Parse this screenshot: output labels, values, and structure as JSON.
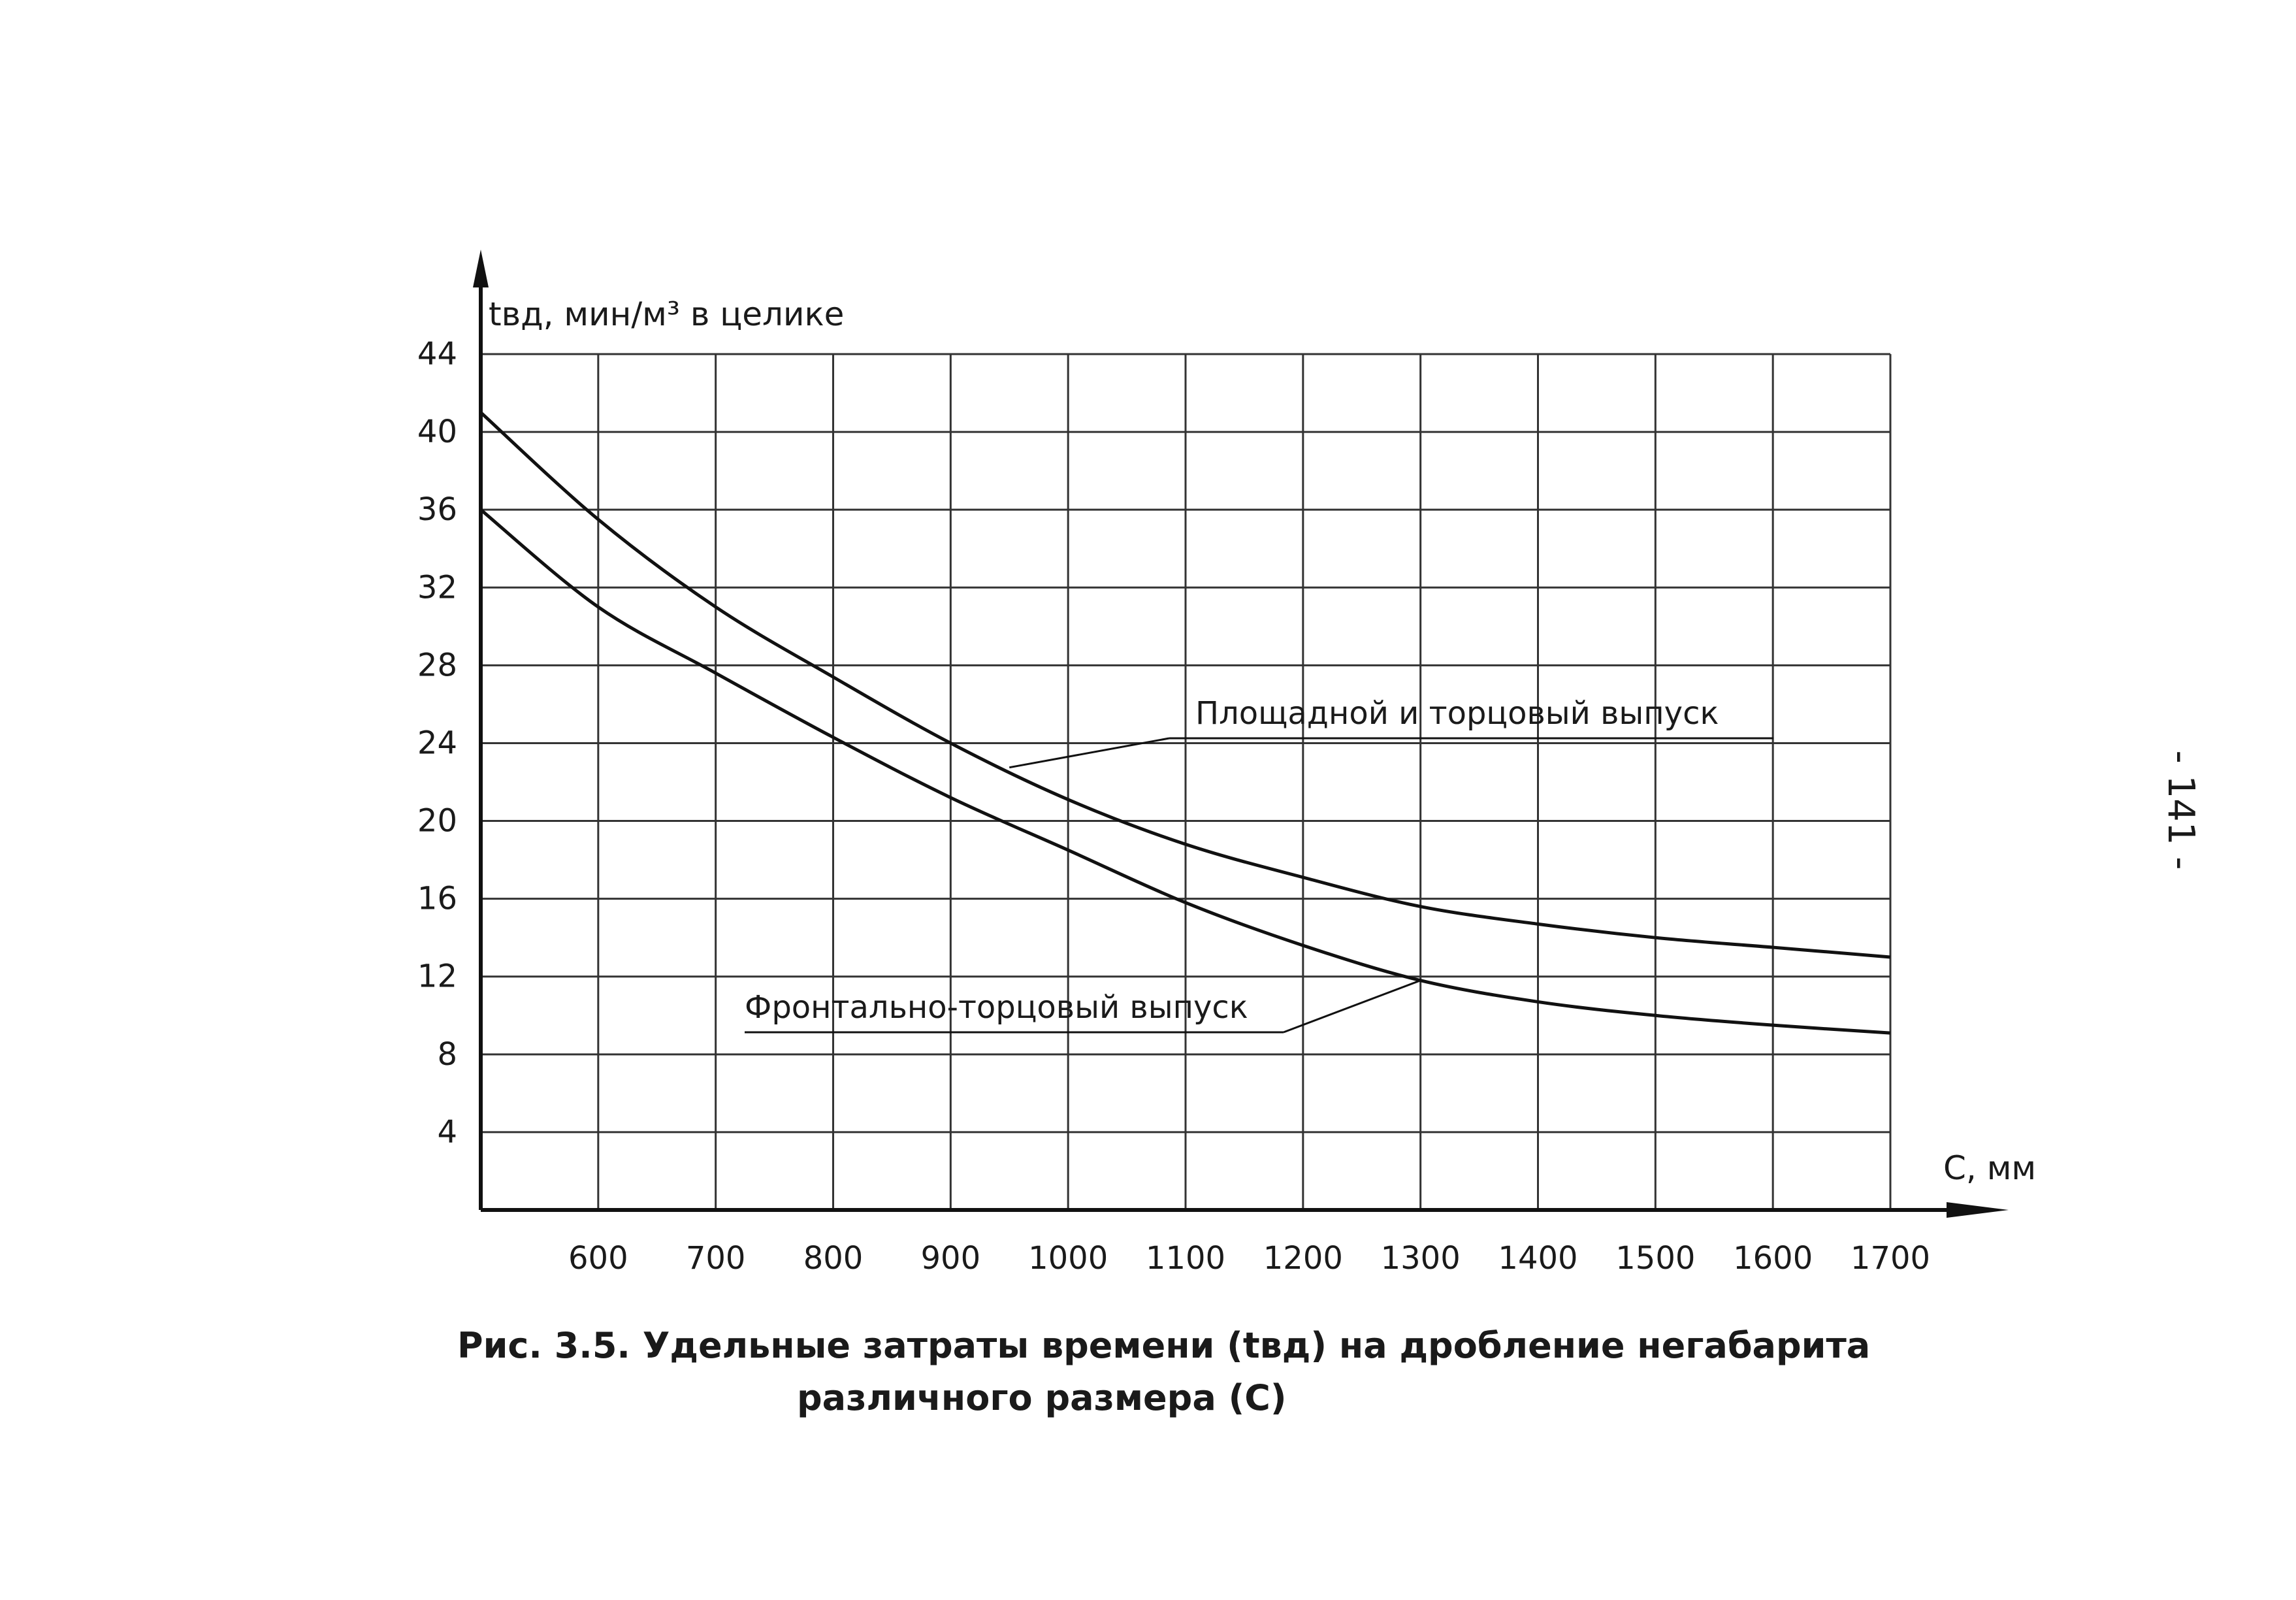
{
  "page_number": "- 141 -",
  "caption": {
    "line1": "Рис. 3.5. Удельные затраты времени (tвд) на дробление негабарита",
    "line2": "различного размера (С)"
  },
  "chart_data": {
    "type": "line",
    "ylabel": "tвд, мин/м³ в целике",
    "xlabel": "С, мм",
    "xlim": [
      500,
      1700
    ],
    "ylim": [
      0,
      44
    ],
    "x_ticks": [
      600,
      700,
      800,
      900,
      1000,
      1100,
      1200,
      1300,
      1400,
      1500,
      1600,
      1700
    ],
    "y_ticks": [
      4,
      8,
      12,
      16,
      20,
      24,
      28,
      32,
      36,
      40,
      44
    ],
    "grid": true,
    "series": [
      {
        "name": "Площадной и торцовый выпуск",
        "x": [
          500,
          600,
          700,
          800,
          900,
          1000,
          1100,
          1200,
          1300,
          1400,
          1500,
          1600,
          1700
        ],
        "y": [
          41.0,
          35.5,
          31.0,
          27.4,
          24.0,
          21.1,
          18.8,
          17.1,
          15.6,
          14.7,
          14.0,
          13.5,
          13.0
        ]
      },
      {
        "name": "Фронтально-торцовый выпуск",
        "x": [
          500,
          600,
          700,
          800,
          900,
          1000,
          1100,
          1200,
          1300,
          1400,
          1500,
          1600,
          1700
        ],
        "y": [
          36.0,
          31.0,
          27.6,
          24.3,
          21.2,
          18.5,
          15.8,
          13.6,
          11.8,
          10.7,
          10.0,
          9.5,
          9.1
        ]
      }
    ]
  }
}
